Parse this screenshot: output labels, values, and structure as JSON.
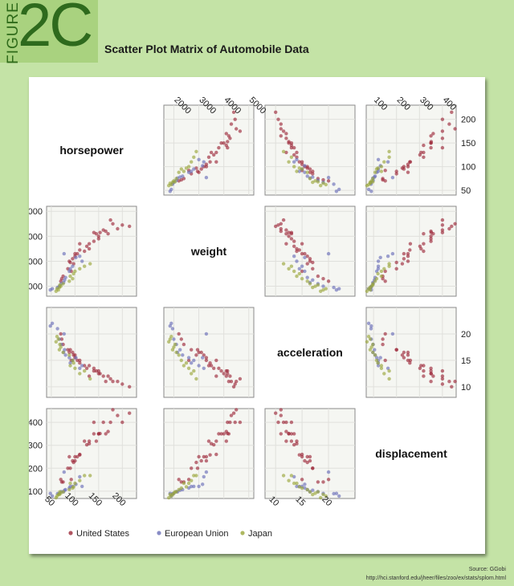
{
  "figure": {
    "word": "FIGURE",
    "number": "2C"
  },
  "title": "Scatter Plot Matrix of Automobile Data",
  "source": {
    "line1": "Source: GGobi",
    "line2": "http://hci.stanford.edu/jheer/files/zoo/ex/stats/splom.html"
  },
  "colors": {
    "United States": "#9c2a3a",
    "European Union": "#6a6fb8",
    "Japan": "#9aa63a"
  },
  "chart_data": {
    "type": "scatter",
    "title": "Scatter Plot Matrix of Automobile Data",
    "variables": [
      "horsepower",
      "weight",
      "acceleration",
      "displacement"
    ],
    "axes": {
      "horsepower": {
        "range": [
          40,
          230
        ],
        "ticks": [
          50,
          100,
          150,
          200
        ]
      },
      "weight": {
        "range": [
          1600,
          5200
        ],
        "ticks": [
          2000,
          3000,
          4000,
          5000
        ]
      },
      "acceleration": {
        "range": [
          8,
          25
        ],
        "ticks": [
          10,
          15,
          20
        ]
      },
      "displacement": {
        "range": [
          68,
          460
        ],
        "ticks": [
          100,
          200,
          300,
          400
        ]
      }
    },
    "legend": [
      "United States",
      "European Union",
      "Japan"
    ],
    "legend_position": "bottom",
    "grid": true,
    "series": [
      {
        "name": "United States",
        "points": [
          {
            "horsepower": 215,
            "weight": 4400,
            "acceleration": 10.0,
            "displacement": 440
          },
          {
            "horsepower": 200,
            "weight": 4450,
            "acceleration": 10.5,
            "displacement": 400
          },
          {
            "horsepower": 190,
            "weight": 4300,
            "acceleration": 11.0,
            "displacement": 430
          },
          {
            "horsepower": 175,
            "weight": 4650,
            "acceleration": 11.5,
            "displacement": 400
          },
          {
            "horsepower": 170,
            "weight": 4100,
            "acceleration": 12.0,
            "displacement": 360
          },
          {
            "horsepower": 165,
            "weight": 4200,
            "acceleration": 11.0,
            "displacement": 350
          },
          {
            "horsepower": 160,
            "weight": 4250,
            "acceleration": 12.0,
            "displacement": 400
          },
          {
            "horsepower": 150,
            "weight": 4000,
            "acceleration": 12.5,
            "displacement": 350
          },
          {
            "horsepower": 150,
            "weight": 3900,
            "acceleration": 13.0,
            "displacement": 350
          },
          {
            "horsepower": 145,
            "weight": 4100,
            "acceleration": 13.0,
            "displacement": 318
          },
          {
            "horsepower": 140,
            "weight": 3800,
            "acceleration": 13.5,
            "displacement": 350
          },
          {
            "horsepower": 140,
            "weight": 4150,
            "acceleration": 13.0,
            "displacement": 400
          },
          {
            "horsepower": 130,
            "weight": 3700,
            "acceleration": 12.0,
            "displacement": 318
          },
          {
            "horsepower": 130,
            "weight": 3500,
            "acceleration": 14.0,
            "displacement": 307
          },
          {
            "horsepower": 125,
            "weight": 3600,
            "acceleration": 13.5,
            "displacement": 302
          },
          {
            "horsepower": 120,
            "weight": 3400,
            "acceleration": 14.0,
            "displacement": 318
          },
          {
            "horsepower": 110,
            "weight": 3450,
            "acceleration": 14.5,
            "displacement": 258
          },
          {
            "horsepower": 105,
            "weight": 3300,
            "acceleration": 15.0,
            "displacement": 250
          },
          {
            "horsepower": 100,
            "weight": 3200,
            "acceleration": 16.0,
            "displacement": 250
          },
          {
            "horsepower": 100,
            "weight": 3300,
            "acceleration": 15.5,
            "displacement": 232
          },
          {
            "horsepower": 97,
            "weight": 2900,
            "acceleration": 16.0,
            "displacement": 225
          },
          {
            "horsepower": 95,
            "weight": 3100,
            "acceleration": 16.5,
            "displacement": 232
          },
          {
            "horsepower": 90,
            "weight": 2950,
            "acceleration": 17.0,
            "displacement": 200
          },
          {
            "horsepower": 88,
            "weight": 3000,
            "acceleration": 16.5,
            "displacement": 250
          },
          {
            "horsepower": 85,
            "weight": 2700,
            "acceleration": 17.0,
            "displacement": 200
          },
          {
            "horsepower": 110,
            "weight": 3700,
            "acceleration": 15.0,
            "displacement": 260
          },
          {
            "horsepower": 180,
            "weight": 4500,
            "acceleration": 11.0,
            "displacement": 455
          },
          {
            "horsepower": 153,
            "weight": 4150,
            "acceleration": 12.5,
            "displacement": 351
          },
          {
            "horsepower": 75,
            "weight": 2400,
            "acceleration": 18.0,
            "displacement": 140
          },
          {
            "horsepower": 72,
            "weight": 2300,
            "acceleration": 19.0,
            "displacement": 140
          },
          {
            "horsepower": 70,
            "weight": 2200,
            "acceleration": 20.0,
            "displacement": 151
          },
          {
            "horsepower": 92,
            "weight": 2600,
            "acceleration": 15.0,
            "displacement": 151
          }
        ]
      },
      {
        "name": "European Union",
        "points": [
          {
            "horsepower": 115,
            "weight": 3000,
            "acceleration": 14.0,
            "displacement": 121
          },
          {
            "horsepower": 102,
            "weight": 3150,
            "acceleration": 15.5,
            "displacement": 130
          },
          {
            "horsepower": 95,
            "weight": 2800,
            "acceleration": 15.0,
            "displacement": 121
          },
          {
            "horsepower": 90,
            "weight": 2700,
            "acceleration": 14.5,
            "displacement": 120
          },
          {
            "horsepower": 88,
            "weight": 2600,
            "acceleration": 15.5,
            "displacement": 114
          },
          {
            "horsepower": 80,
            "weight": 2350,
            "acceleration": 16.0,
            "displacement": 107
          },
          {
            "horsepower": 78,
            "weight": 2250,
            "acceleration": 17.0,
            "displacement": 104
          },
          {
            "horsepower": 76,
            "weight": 2150,
            "acceleration": 16.5,
            "displacement": 97
          },
          {
            "horsepower": 71,
            "weight": 2100,
            "acceleration": 18.0,
            "displacement": 98
          },
          {
            "horsepower": 67,
            "weight": 2000,
            "acceleration": 19.0,
            "displacement": 90
          },
          {
            "horsepower": 63,
            "weight": 1950,
            "acceleration": 21.0,
            "displacement": 89
          },
          {
            "horsepower": 52,
            "weight": 1900,
            "acceleration": 22.0,
            "displacement": 79
          },
          {
            "horsepower": 48,
            "weight": 1850,
            "acceleration": 21.5,
            "displacement": 90
          },
          {
            "horsepower": 110,
            "weight": 3200,
            "acceleration": 13.5,
            "displacement": 163
          },
          {
            "horsepower": 77,
            "weight": 3300,
            "acceleration": 20.0,
            "displacement": 183
          }
        ]
      },
      {
        "name": "Japan",
        "points": [
          {
            "horsepower": 97,
            "weight": 2500,
            "acceleration": 14.5,
            "displacement": 119
          },
          {
            "horsepower": 95,
            "weight": 2300,
            "acceleration": 15.0,
            "displacement": 113
          },
          {
            "horsepower": 90,
            "weight": 2400,
            "acceleration": 14.0,
            "displacement": 134
          },
          {
            "horsepower": 88,
            "weight": 2200,
            "acceleration": 16.0,
            "displacement": 107
          },
          {
            "horsepower": 75,
            "weight": 2100,
            "acceleration": 16.5,
            "displacement": 97
          },
          {
            "horsepower": 70,
            "weight": 2000,
            "acceleration": 17.5,
            "displacement": 91
          },
          {
            "horsepower": 68,
            "weight": 2050,
            "acceleration": 18.0,
            "displacement": 97
          },
          {
            "horsepower": 67,
            "weight": 1950,
            "acceleration": 17.0,
            "displacement": 85
          },
          {
            "horsepower": 65,
            "weight": 1850,
            "acceleration": 19.0,
            "displacement": 86
          },
          {
            "horsepower": 60,
            "weight": 1800,
            "acceleration": 18.5,
            "displacement": 71
          },
          {
            "horsepower": 62,
            "weight": 1900,
            "acceleration": 19.5,
            "displacement": 79
          },
          {
            "horsepower": 100,
            "weight": 2600,
            "acceleration": 13.5,
            "displacement": 134
          },
          {
            "horsepower": 110,
            "weight": 2700,
            "acceleration": 12.5,
            "displacement": 146
          },
          {
            "horsepower": 120,
            "weight": 2800,
            "acceleration": 13.0,
            "displacement": 168
          },
          {
            "horsepower": 132,
            "weight": 2900,
            "acceleration": 11.5,
            "displacement": 168
          }
        ]
      }
    ]
  }
}
